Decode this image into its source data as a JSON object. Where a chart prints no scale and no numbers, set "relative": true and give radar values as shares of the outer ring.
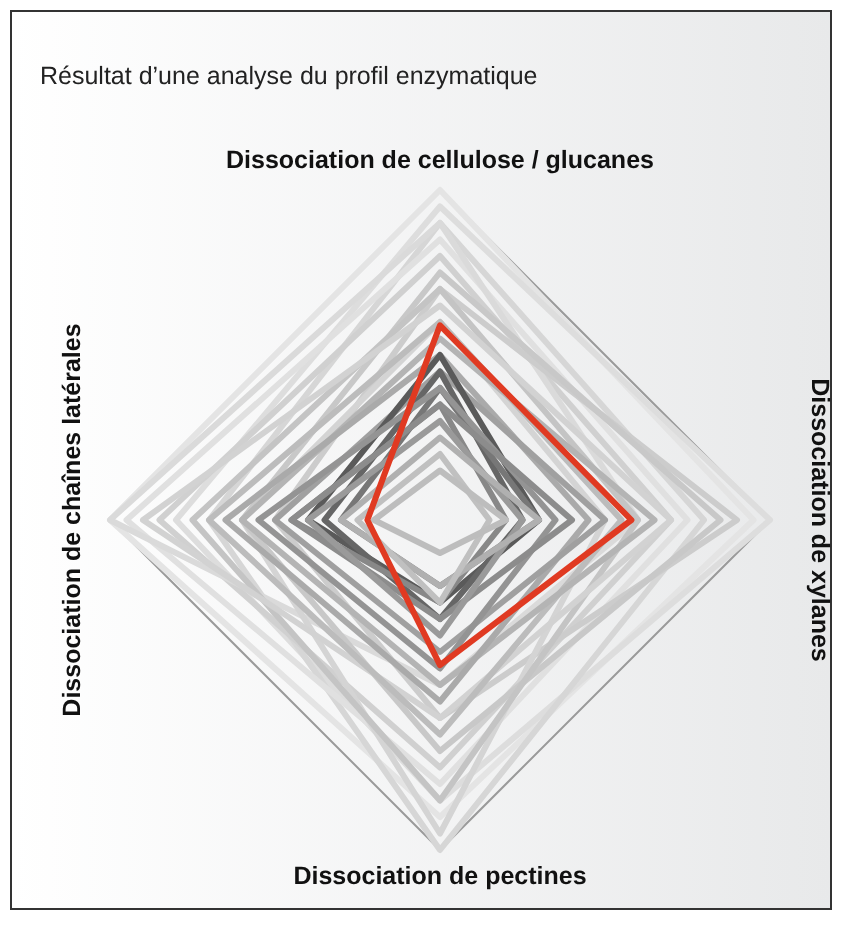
{
  "chart_data": {
    "type": "radar",
    "title": "Résultat d’une analyse du profil enzymatique",
    "categories": [
      "Dissociation de cellulose / glucanes",
      "Dissociation de xylanes",
      "Dissociation de pectines",
      "Dissociation de chaînes latérales"
    ],
    "relative": true,
    "grid": true,
    "series": [
      {
        "color": "#e4e4e4",
        "values": [
          1.0,
          0.95,
          0.9,
          1.0
        ]
      },
      {
        "color": "#dddddd",
        "values": [
          0.95,
          1.0,
          0.85,
          0.8
        ]
      },
      {
        "color": "#d6d6d6",
        "values": [
          0.9,
          0.8,
          1.0,
          0.7
        ]
      },
      {
        "color": "#e0e0e0",
        "values": [
          0.85,
          0.75,
          0.8,
          0.95
        ]
      },
      {
        "color": "#d0d0d0",
        "values": [
          0.8,
          0.7,
          0.75,
          0.85
        ]
      },
      {
        "color": "#dadada",
        "values": [
          0.9,
          0.6,
          0.5,
          1.0
        ]
      },
      {
        "color": "#cccccc",
        "values": [
          0.7,
          0.9,
          0.6,
          0.5
        ]
      },
      {
        "color": "#d4d4d4",
        "values": [
          0.6,
          0.5,
          0.95,
          0.6
        ]
      },
      {
        "color": "#c8c8c8",
        "values": [
          0.75,
          0.85,
          0.7,
          0.6
        ]
      },
      {
        "color": "#c4c4c4",
        "values": [
          0.7,
          0.6,
          0.85,
          0.75
        ]
      },
      {
        "color": "#d2d2d2",
        "values": [
          0.65,
          0.7,
          0.6,
          0.9
        ]
      },
      {
        "color": "#bcbcbc",
        "values": [
          0.6,
          0.55,
          0.65,
          0.7
        ]
      },
      {
        "color": "#b4b4b4",
        "values": [
          0.55,
          0.65,
          0.5,
          0.6
        ]
      },
      {
        "color": "#aaaaaa",
        "values": [
          0.5,
          0.45,
          0.55,
          0.65
        ]
      },
      {
        "color": "#a0a0a0",
        "values": [
          0.45,
          0.5,
          0.4,
          0.5
        ]
      },
      {
        "color": "#5a5a5a",
        "values": [
          0.5,
          0.3,
          0.25,
          0.4
        ]
      },
      {
        "color": "#666666",
        "values": [
          0.45,
          0.25,
          0.3,
          0.35
        ]
      },
      {
        "color": "#777777",
        "values": [
          0.4,
          0.3,
          0.2,
          0.3
        ]
      },
      {
        "color": "#888888",
        "values": [
          0.35,
          0.2,
          0.25,
          0.45
        ]
      },
      {
        "color": "#949494",
        "values": [
          0.4,
          0.35,
          0.45,
          0.55
        ]
      },
      {
        "color": "#8c8c8c",
        "values": [
          0.35,
          0.4,
          0.3,
          0.45
        ]
      },
      {
        "color": "#9a9a9a",
        "values": [
          0.3,
          0.25,
          0.35,
          0.4
        ]
      },
      {
        "color": "#b0b0b0",
        "values": [
          0.25,
          0.3,
          0.2,
          0.3
        ]
      },
      {
        "color": "#c0c0c0",
        "values": [
          0.2,
          0.15,
          0.25,
          0.25
        ]
      },
      {
        "color": "#bdbdbd",
        "values": [
          0.15,
          0.2,
          0.1,
          0.2
        ]
      },
      {
        "color": "#e03a22",
        "values": [
          0.59,
          0.58,
          0.44,
          0.22
        ]
      }
    ]
  }
}
